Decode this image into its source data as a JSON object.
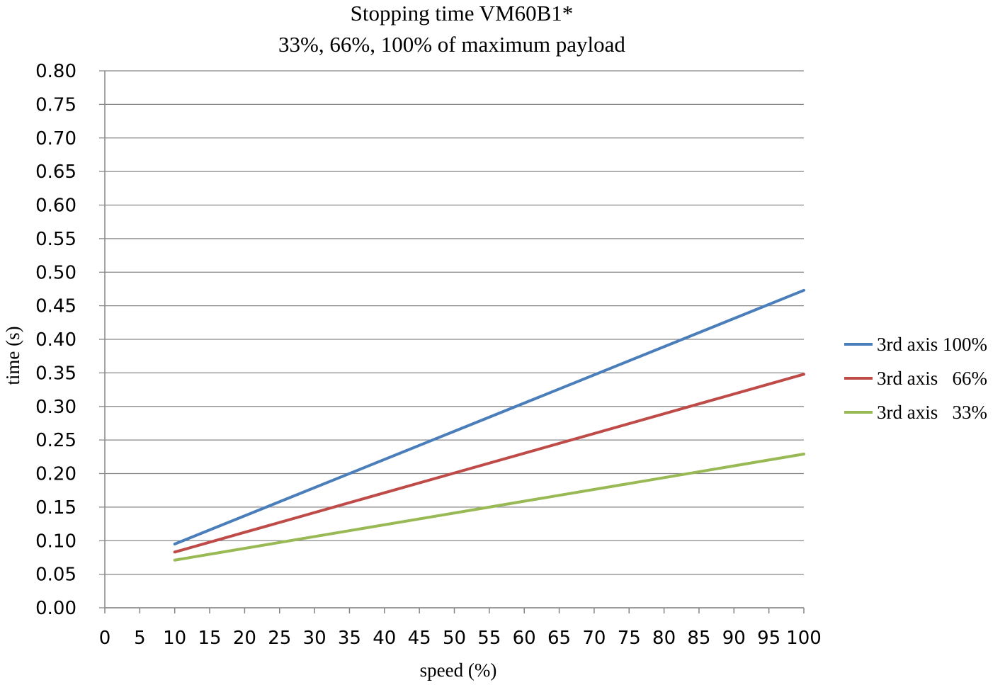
{
  "chart_data": {
    "type": "line",
    "title": "Stopping time VM60B1*",
    "subtitle": "33%, 66%, 100% of maximum payload",
    "xlabel": "speed (%)",
    "ylabel": "time (s)",
    "xlim": [
      0,
      100
    ],
    "ylim": [
      0,
      0.8
    ],
    "x_ticks": [
      "0",
      "5",
      "10",
      "15",
      "20",
      "25",
      "30",
      "35",
      "40",
      "45",
      "50",
      "55",
      "60",
      "65",
      "70",
      "75",
      "80",
      "85",
      "90",
      "95",
      "100"
    ],
    "y_ticks": [
      "0.00",
      "0.05",
      "0.10",
      "0.15",
      "0.20",
      "0.25",
      "0.30",
      "0.35",
      "0.40",
      "0.45",
      "0.50",
      "0.55",
      "0.60",
      "0.65",
      "0.70",
      "0.75",
      "0.80"
    ],
    "grid": "horizontal",
    "legend_position": "right",
    "series": [
      {
        "name": "3rd axis 100%",
        "color": "#4a7ebb",
        "x": [
          10,
          100
        ],
        "y": [
          0.095,
          0.473
        ]
      },
      {
        "name": "3rd axis   66%",
        "color": "#be4b48",
        "x": [
          10,
          100
        ],
        "y": [
          0.083,
          0.348
        ]
      },
      {
        "name": "3rd axis   33%",
        "color": "#98b954",
        "x": [
          10,
          100
        ],
        "y": [
          0.071,
          0.229
        ]
      }
    ]
  }
}
